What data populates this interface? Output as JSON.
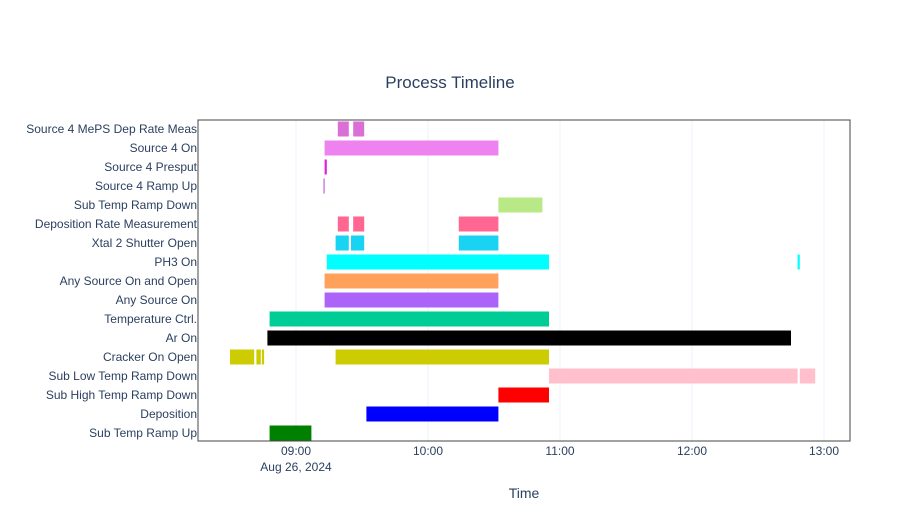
{
  "chart_data": {
    "type": "timeline",
    "title": "Process Timeline",
    "xlabel": "Time",
    "ylabel": "",
    "x_ticks": [
      "09:00",
      "10:00",
      "11:00",
      "12:00",
      "13:00"
    ],
    "x_date_label": "Aug 26, 2024",
    "xlim": [
      "2024-08-26 08:23",
      "2024-08-26 13:13"
    ],
    "grid": true,
    "legend": "none",
    "categories": [
      "Source 4 MePS Dep Rate Meas",
      "Source 4 On",
      "Source 4 Presput",
      "Source 4 Ramp Up",
      "Sub Temp Ramp Down",
      "Deposition Rate Measurement",
      "Xtal 2 Shutter Open",
      "PH3 On",
      "Any Source On and Open",
      "Any Source On",
      "Temperature Ctrl.",
      "Ar On",
      "Cracker On Open",
      "Sub Low Temp Ramp Down",
      "Sub High Temp Ramp Down",
      "Deposition",
      "Sub Temp Ramp Up"
    ],
    "series": [
      {
        "category": "Source 4 MePS Dep Rate Meas",
        "color": "#da70d6",
        "intervals": [
          [
            "09:19",
            "09:24"
          ],
          [
            "09:26",
            "09:31"
          ]
        ]
      },
      {
        "category": "Source 4 On",
        "color": "#ee82ee",
        "intervals": [
          [
            "09:13",
            "10:32"
          ]
        ]
      },
      {
        "category": "Source 4 Presput",
        "color": "#e01ee0",
        "intervals": [
          [
            "09:13",
            "09:14"
          ]
        ]
      },
      {
        "category": "Source 4 Ramp Up",
        "color": "#ba55d3",
        "intervals": [
          [
            "09:12.5",
            "09:13"
          ]
        ]
      },
      {
        "category": "Sub Temp Ramp Down",
        "color": "#b8e986",
        "intervals": [
          [
            "10:32",
            "10:52"
          ]
        ]
      },
      {
        "category": "Deposition Rate Measurement",
        "color": "#ff6692",
        "intervals": [
          [
            "09:19",
            "09:24"
          ],
          [
            "09:26",
            "09:31"
          ],
          [
            "10:14",
            "10:32"
          ]
        ]
      },
      {
        "category": "Xtal 2 Shutter Open",
        "color": "#19d3f3",
        "intervals": [
          [
            "09:18",
            "09:24"
          ],
          [
            "09:25",
            "09:31"
          ],
          [
            "10:14",
            "10:32"
          ]
        ]
      },
      {
        "category": "PH3 On",
        "color": "#00ffff",
        "intervals": [
          [
            "09:14",
            "10:55"
          ],
          [
            "12:48",
            "12:49"
          ]
        ]
      },
      {
        "category": "Any Source On and Open",
        "color": "#ffa15a",
        "intervals": [
          [
            "09:13",
            "10:32"
          ]
        ]
      },
      {
        "category": "Any Source On",
        "color": "#ab63fa",
        "intervals": [
          [
            "09:13",
            "10:32"
          ]
        ]
      },
      {
        "category": "Temperature Ctrl.",
        "color": "#00cc96",
        "intervals": [
          [
            "08:48",
            "10:55"
          ]
        ]
      },
      {
        "category": "Ar On",
        "color": "#000000",
        "intervals": [
          [
            "08:47",
            "12:45"
          ]
        ]
      },
      {
        "category": "Cracker On Open",
        "color": "#cccc00",
        "intervals": [
          [
            "08:30",
            "08:41"
          ],
          [
            "08:42",
            "08:44"
          ],
          [
            "08:44.5",
            "08:45.5"
          ],
          [
            "09:18",
            "10:55"
          ]
        ]
      },
      {
        "category": "Sub Low Temp Ramp Down",
        "color": "#ffc0cb",
        "intervals": [
          [
            "10:55",
            "12:48"
          ],
          [
            "12:49",
            "12:56"
          ]
        ]
      },
      {
        "category": "Sub High Temp Ramp Down",
        "color": "#ff0000",
        "intervals": [
          [
            "10:32",
            "10:55"
          ]
        ]
      },
      {
        "category": "Deposition",
        "color": "#0000ff",
        "intervals": [
          [
            "09:32",
            "10:32"
          ]
        ]
      },
      {
        "category": "Sub Temp Ramp Up",
        "color": "#008000",
        "intervals": [
          [
            "08:48",
            "09:07"
          ]
        ]
      }
    ]
  }
}
